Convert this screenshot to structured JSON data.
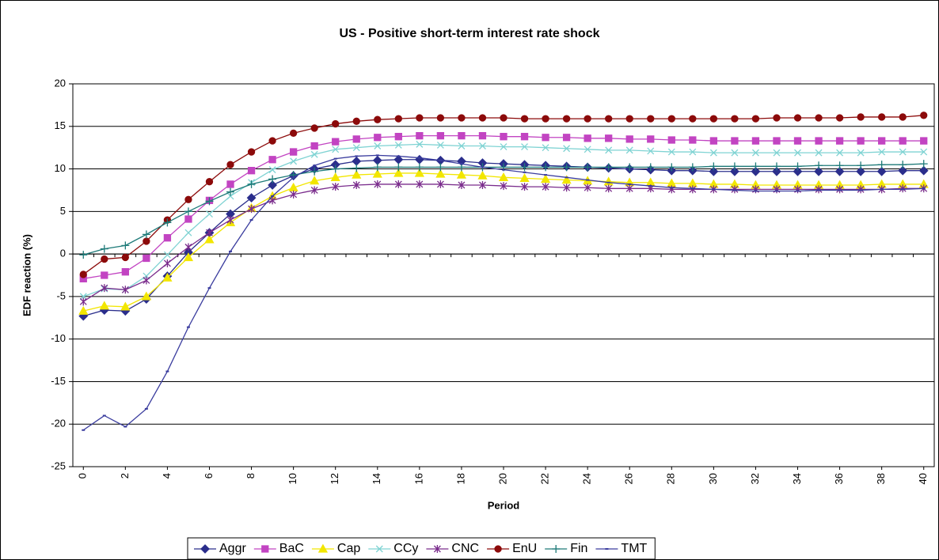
{
  "chart_data": {
    "type": "line",
    "title": "US - Positive short-term interest rate shock",
    "x_label": "Period",
    "y_label": "EDF reaction (%)",
    "x": [
      0,
      1,
      2,
      3,
      4,
      5,
      6,
      7,
      8,
      9,
      10,
      11,
      12,
      13,
      14,
      15,
      16,
      17,
      18,
      19,
      20,
      21,
      22,
      23,
      24,
      25,
      26,
      27,
      28,
      29,
      30,
      31,
      32,
      33,
      34,
      35,
      36,
      37,
      38,
      39,
      40
    ],
    "xlim": [
      -0.5,
      40.5
    ],
    "xticks": [
      0,
      2,
      4,
      6,
      8,
      10,
      12,
      14,
      16,
      18,
      20,
      22,
      24,
      26,
      28,
      30,
      32,
      34,
      36,
      38,
      40
    ],
    "ylim": [
      -25,
      20
    ],
    "yticks": [
      -25,
      -20,
      -15,
      -10,
      -5,
      0,
      5,
      10,
      15,
      20
    ],
    "grid": true,
    "legend": "bottom",
    "series": [
      {
        "name": "Aggr",
        "color": "#2b2e8c",
        "marker": "diamond",
        "values": [
          -7.3,
          -6.6,
          -6.7,
          -5.3,
          -2.6,
          0.2,
          2.5,
          4.7,
          6.6,
          8.1,
          9.2,
          10.0,
          10.5,
          10.9,
          11.0,
          11.1,
          11.1,
          11.0,
          10.9,
          10.7,
          10.6,
          10.5,
          10.4,
          10.3,
          10.2,
          10.1,
          10.0,
          9.9,
          9.8,
          9.8,
          9.7,
          9.7,
          9.7,
          9.7,
          9.7,
          9.7,
          9.7,
          9.7,
          9.7,
          9.8,
          9.8
        ]
      },
      {
        "name": "BaC",
        "color": "#c244c2",
        "marker": "square",
        "values": [
          -2.9,
          -2.5,
          -2.1,
          -0.5,
          1.9,
          4.1,
          6.3,
          8.2,
          9.8,
          11.1,
          12.0,
          12.7,
          13.2,
          13.5,
          13.7,
          13.8,
          13.9,
          13.9,
          13.9,
          13.9,
          13.8,
          13.8,
          13.7,
          13.7,
          13.6,
          13.6,
          13.5,
          13.5,
          13.4,
          13.4,
          13.3,
          13.3,
          13.3,
          13.3,
          13.3,
          13.3,
          13.3,
          13.3,
          13.3,
          13.3,
          13.3
        ]
      },
      {
        "name": "Cap",
        "color": "#f2e600",
        "marker": "triangle",
        "values": [
          -6.7,
          -6.1,
          -6.2,
          -5.0,
          -2.8,
          -0.4,
          1.7,
          3.7,
          5.4,
          6.8,
          7.8,
          8.6,
          9.0,
          9.3,
          9.4,
          9.5,
          9.5,
          9.4,
          9.3,
          9.2,
          9.0,
          8.9,
          8.8,
          8.7,
          8.6,
          8.5,
          8.4,
          8.4,
          8.3,
          8.3,
          8.2,
          8.2,
          8.1,
          8.1,
          8.1,
          8.1,
          8.1,
          8.1,
          8.2,
          8.2,
          8.2
        ]
      },
      {
        "name": "CCy",
        "color": "#7fd3d3",
        "marker": "x",
        "values": [
          -5.0,
          -4.1,
          -4.2,
          -2.6,
          -0.1,
          2.5,
          4.7,
          6.8,
          8.4,
          9.9,
          10.9,
          11.7,
          12.3,
          12.5,
          12.7,
          12.8,
          12.9,
          12.8,
          12.7,
          12.7,
          12.6,
          12.6,
          12.5,
          12.4,
          12.3,
          12.2,
          12.2,
          12.1,
          12.0,
          12.0,
          11.9,
          11.9,
          11.9,
          11.9,
          11.9,
          11.9,
          11.9,
          11.9,
          12.0,
          12.0,
          12.0
        ]
      },
      {
        "name": "CNC",
        "color": "#7a2c8c",
        "marker": "star",
        "values": [
          -5.6,
          -4.0,
          -4.2,
          -3.1,
          -1.1,
          0.8,
          2.5,
          4.0,
          5.3,
          6.3,
          7.0,
          7.5,
          7.9,
          8.1,
          8.2,
          8.2,
          8.2,
          8.2,
          8.1,
          8.1,
          8.0,
          7.9,
          7.9,
          7.8,
          7.8,
          7.7,
          7.7,
          7.7,
          7.6,
          7.6,
          7.6,
          7.6,
          7.6,
          7.6,
          7.6,
          7.6,
          7.6,
          7.6,
          7.6,
          7.7,
          7.7
        ]
      },
      {
        "name": "EnU",
        "color": "#8c0a0a",
        "marker": "circle",
        "values": [
          -2.4,
          -0.6,
          -0.4,
          1.5,
          4.0,
          6.4,
          8.5,
          10.5,
          12.0,
          13.3,
          14.2,
          14.8,
          15.3,
          15.6,
          15.8,
          15.9,
          16.0,
          16.0,
          16.0,
          16.0,
          16.0,
          15.9,
          15.9,
          15.9,
          15.9,
          15.9,
          15.9,
          15.9,
          15.9,
          15.9,
          15.9,
          15.9,
          15.9,
          16.0,
          16.0,
          16.0,
          16.0,
          16.1,
          16.1,
          16.1,
          16.3
        ]
      },
      {
        "name": "Fin",
        "color": "#1d7a78",
        "marker": "plus",
        "values": [
          -0.1,
          0.6,
          1.0,
          2.3,
          3.7,
          5.0,
          6.2,
          7.3,
          8.2,
          8.8,
          9.3,
          9.7,
          10.0,
          10.1,
          10.2,
          10.2,
          10.2,
          10.2,
          10.2,
          10.2,
          10.2,
          10.2,
          10.2,
          10.2,
          10.2,
          10.2,
          10.2,
          10.2,
          10.2,
          10.2,
          10.3,
          10.3,
          10.3,
          10.3,
          10.3,
          10.4,
          10.4,
          10.4,
          10.5,
          10.5,
          10.6
        ]
      },
      {
        "name": "TMT",
        "color": "#3a3c9e",
        "marker": "dash",
        "values": [
          -20.7,
          -19.0,
          -20.3,
          -18.2,
          -13.8,
          -8.6,
          -4.0,
          0.3,
          4.0,
          6.8,
          9.0,
          10.4,
          11.2,
          11.5,
          11.6,
          11.5,
          11.3,
          11.0,
          10.6,
          10.2,
          9.9,
          9.6,
          9.3,
          9.0,
          8.7,
          8.4,
          8.2,
          8.0,
          7.8,
          7.7,
          7.6,
          7.5,
          7.4,
          7.4,
          7.4,
          7.5,
          7.5,
          7.5,
          7.6,
          7.6,
          7.7
        ]
      }
    ]
  }
}
